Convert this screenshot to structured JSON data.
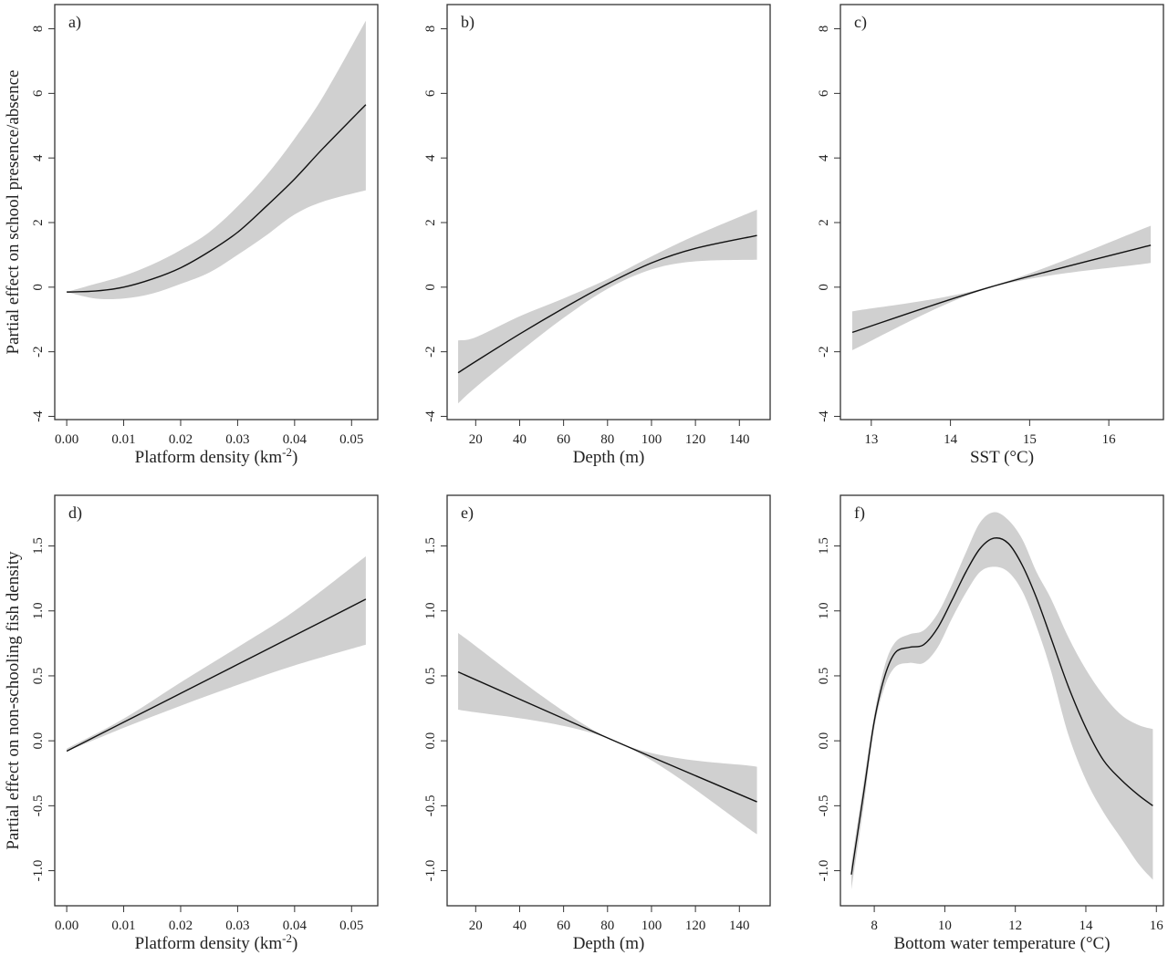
{
  "chart_data": [
    {
      "type": "line",
      "panel_label": "a)",
      "ylabel": "Partial effect on school presence/absence",
      "xlabel": "Platform density (km",
      "xlabel_sup": "-2",
      "xlabel_end": ")",
      "xlim": [
        -0.0021,
        0.0546
      ],
      "ylim": [
        -4.1,
        8.75
      ],
      "xticks": [
        0.0,
        0.01,
        0.02,
        0.03,
        0.04,
        0.05
      ],
      "xtick_labels": [
        "0.00",
        "0.01",
        "0.02",
        "0.03",
        "0.04",
        "0.05"
      ],
      "yticks": [
        -4,
        -2,
        0,
        2,
        4,
        6,
        8
      ],
      "ytick_labels": [
        "-4",
        "-2",
        "0",
        "2",
        "4",
        "6",
        "8"
      ],
      "x": [
        0,
        0.005,
        0.01,
        0.015,
        0.02,
        0.025,
        0.03,
        0.035,
        0.04,
        0.045,
        0.0525
      ],
      "fit": [
        -0.15,
        -0.12,
        0.0,
        0.25,
        0.6,
        1.1,
        1.7,
        2.5,
        3.35,
        4.3,
        5.65
      ],
      "lower": [
        -0.15,
        -0.35,
        -0.35,
        -0.2,
        0.1,
        0.45,
        1.0,
        1.6,
        2.25,
        2.65,
        3.0
      ],
      "upper": [
        -0.15,
        0.1,
        0.35,
        0.7,
        1.15,
        1.7,
        2.5,
        3.45,
        4.6,
        5.9,
        8.25
      ]
    },
    {
      "type": "line",
      "panel_label": "b)",
      "ylabel": "",
      "xlabel": "Depth (m)",
      "xlim": [
        7,
        154
      ],
      "ylim": [
        -4.1,
        8.75
      ],
      "xticks": [
        20,
        40,
        60,
        80,
        100,
        120,
        140
      ],
      "xtick_labels": [
        "20",
        "40",
        "60",
        "80",
        "100",
        "120",
        "140"
      ],
      "yticks": [
        -4,
        -2,
        0,
        2,
        4,
        6,
        8
      ],
      "ytick_labels": [
        "-4",
        "-2",
        "0",
        "2",
        "4",
        "6",
        "8"
      ],
      "x": [
        12,
        20,
        40,
        60,
        80,
        100,
        120,
        148
      ],
      "fit": [
        -2.65,
        -2.3,
        -1.45,
        -0.65,
        0.1,
        0.75,
        1.2,
        1.6
      ],
      "lower": [
        -3.6,
        -3.1,
        -2.0,
        -0.95,
        -0.05,
        0.55,
        0.8,
        0.85
      ],
      "upper": [
        -1.65,
        -1.55,
        -0.9,
        -0.35,
        0.25,
        0.95,
        1.6,
        2.4
      ]
    },
    {
      "type": "line",
      "panel_label": "c)",
      "ylabel": "",
      "xlabel": "SST (°C)",
      "xlim": [
        12.61,
        16.69
      ],
      "ylim": [
        -4.1,
        8.75
      ],
      "xticks": [
        13,
        14,
        15,
        16
      ],
      "xtick_labels": [
        "13",
        "14",
        "15",
        "16"
      ],
      "yticks": [
        -4,
        -2,
        0,
        2,
        4,
        6,
        8
      ],
      "ytick_labels": [
        "-4",
        "-2",
        "0",
        "2",
        "4",
        "6",
        "8"
      ],
      "x": [
        12.76,
        14.5,
        16.53
      ],
      "fit": [
        -1.4,
        0.0,
        1.3
      ],
      "lower": [
        -1.95,
        -0.02,
        0.75
      ],
      "upper": [
        -0.75,
        0.02,
        1.9
      ]
    },
    {
      "type": "line",
      "panel_label": "d)",
      "ylabel": "Partial effect on non-schooling fish density",
      "xlabel": "Platform density (km",
      "xlabel_sup": "-2",
      "xlabel_end": ")",
      "xlim": [
        -0.0021,
        0.0546
      ],
      "ylim": [
        -1.27,
        1.89
      ],
      "xticks": [
        0.0,
        0.01,
        0.02,
        0.03,
        0.04,
        0.05
      ],
      "xtick_labels": [
        "0.00",
        "0.01",
        "0.02",
        "0.03",
        "0.04",
        "0.05"
      ],
      "yticks": [
        -1.0,
        -0.5,
        0.0,
        0.5,
        1.0,
        1.5
      ],
      "ytick_labels": [
        "-1.0",
        "-0.5",
        "0.0",
        "0.5",
        "1.0",
        "1.5"
      ],
      "x": [
        0,
        0.01,
        0.02,
        0.03,
        0.04,
        0.0525
      ],
      "fit": [
        -0.08,
        0.143,
        0.365,
        0.588,
        0.811,
        1.09
      ],
      "lower": [
        -0.08,
        0.1,
        0.27,
        0.43,
        0.58,
        0.74
      ],
      "upper": [
        -0.06,
        0.17,
        0.45,
        0.72,
        1.0,
        1.42
      ]
    },
    {
      "type": "line",
      "panel_label": "e)",
      "ylabel": "",
      "xlabel": "Depth (m)",
      "xlim": [
        7,
        154
      ],
      "ylim": [
        -1.27,
        1.89
      ],
      "xticks": [
        20,
        40,
        60,
        80,
        100,
        120,
        140
      ],
      "xtick_labels": [
        "20",
        "40",
        "60",
        "80",
        "100",
        "120",
        "140"
      ],
      "yticks": [
        -1.0,
        -0.5,
        0.0,
        0.5,
        1.0,
        1.5
      ],
      "ytick_labels": [
        "-1.0",
        "-0.5",
        "0.0",
        "0.5",
        "1.0",
        "1.5"
      ],
      "x": [
        12,
        83,
        148
      ],
      "fit": [
        0.53,
        0.0,
        -0.47
      ],
      "lower": [
        0.24,
        0.0,
        -0.72
      ],
      "upper": [
        0.83,
        0.0,
        -0.2
      ]
    },
    {
      "type": "line",
      "panel_label": "f)",
      "ylabel": "",
      "xlabel": "Bottom water temperature (°C)",
      "xlim": [
        7.04,
        16.2
      ],
      "ylim": [
        -1.27,
        1.89
      ],
      "xticks": [
        8,
        10,
        12,
        14,
        16
      ],
      "xtick_labels": [
        "8",
        "10",
        "12",
        "14",
        "16"
      ],
      "yticks": [
        -1.0,
        -0.5,
        0.0,
        0.5,
        1.0,
        1.5
      ],
      "ytick_labels": [
        "-1.0",
        "-0.5",
        "0.0",
        "0.5",
        "1.0",
        "1.5"
      ],
      "x": [
        7.35,
        7.7,
        8.0,
        8.3,
        8.6,
        9.0,
        9.4,
        9.8,
        10.2,
        10.6,
        11.0,
        11.4,
        11.8,
        12.2,
        12.6,
        13.0,
        13.5,
        14.0,
        14.5,
        15.0,
        15.5,
        15.9
      ],
      "fit": [
        -1.03,
        -0.4,
        0.15,
        0.5,
        0.68,
        0.72,
        0.74,
        0.87,
        1.08,
        1.3,
        1.48,
        1.56,
        1.52,
        1.35,
        1.1,
        0.8,
        0.42,
        0.1,
        -0.15,
        -0.3,
        -0.42,
        -0.5
      ],
      "lower": [
        -1.15,
        -0.5,
        0.1,
        0.42,
        0.57,
        0.6,
        0.6,
        0.72,
        0.94,
        1.14,
        1.3,
        1.34,
        1.3,
        1.15,
        0.88,
        0.55,
        0.05,
        -0.3,
        -0.55,
        -0.75,
        -0.95,
        -1.07
      ],
      "upper": [
        -0.95,
        -0.32,
        0.2,
        0.58,
        0.76,
        0.82,
        0.85,
        0.98,
        1.2,
        1.45,
        1.68,
        1.76,
        1.7,
        1.55,
        1.3,
        1.1,
        0.8,
        0.55,
        0.35,
        0.2,
        0.12,
        0.09
      ]
    }
  ],
  "colors": {
    "band": "#d0d0d0",
    "line": "#111111",
    "axis": "#333333"
  }
}
